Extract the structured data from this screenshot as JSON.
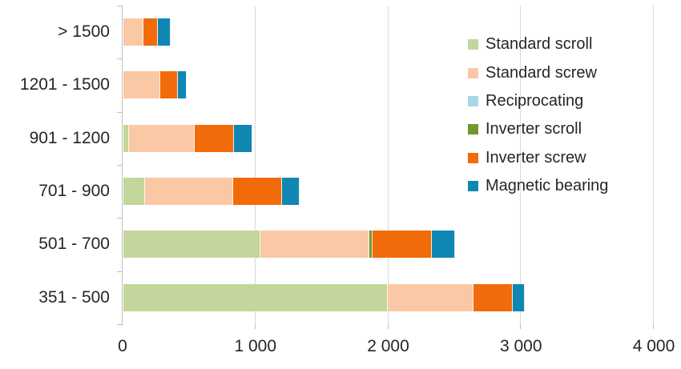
{
  "chart_data": {
    "type": "bar",
    "orientation": "horizontal",
    "stacked": true,
    "title": "",
    "categories": [
      "> 1500",
      "1201 - 1500",
      "901 - 1200",
      "701 - 900",
      "501 - 700",
      "351 - 500"
    ],
    "series": [
      {
        "name": "Standard scroll",
        "color": "#c3d69b",
        "values": [
          0,
          0,
          40,
          160,
          1030,
          1990
        ]
      },
      {
        "name": "Standard screw",
        "color": "#fac8a4",
        "values": [
          150,
          275,
          495,
          665,
          825,
          645
        ]
      },
      {
        "name": "Reciprocating",
        "color": "#a6d7e8",
        "values": [
          0,
          0,
          0,
          0,
          0,
          0
        ]
      },
      {
        "name": "Inverter scroll",
        "color": "#71982a",
        "values": [
          0,
          0,
          0,
          0,
          20,
          0
        ]
      },
      {
        "name": "Inverter screw",
        "color": "#f26b0a",
        "values": [
          110,
          135,
          300,
          370,
          450,
          300
        ]
      },
      {
        "name": "Magnetic bearing",
        "color": "#0f87b2",
        "values": [
          95,
          65,
          135,
          130,
          170,
          90
        ]
      }
    ],
    "xlim": [
      0,
      4000
    ],
    "xticks": [
      "0",
      "1 000",
      "2 000",
      "3 000",
      "4 000"
    ],
    "grid": true,
    "legend_position": "upper right"
  },
  "colors": {
    "text": "#262626",
    "axis": "#bfbfbf",
    "gridline": "#d9d9d9",
    "background": "#ffffff"
  }
}
